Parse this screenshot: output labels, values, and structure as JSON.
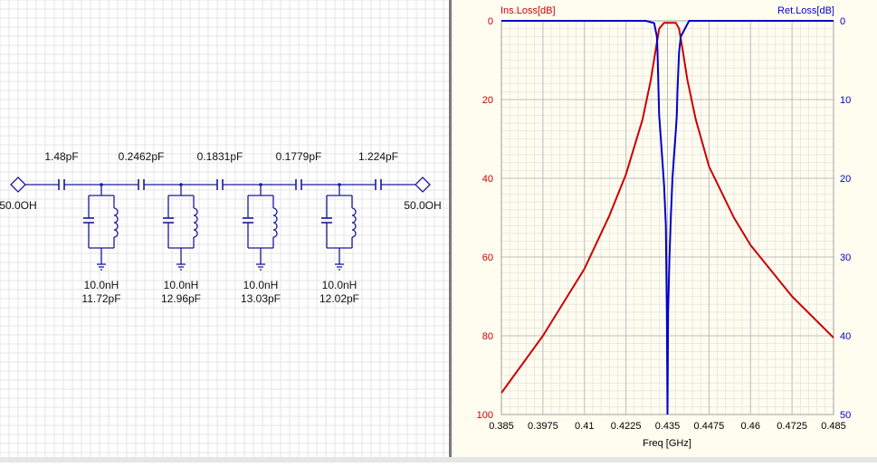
{
  "schematic": {
    "source_port": "50.0OH",
    "load_port": "50.0OH",
    "series_caps": [
      "1.48pF",
      "0.2462pF",
      "0.1831pF",
      "0.1779pF",
      "1.224pF"
    ],
    "resonators": [
      {
        "inductor": "10.0nH",
        "capacitor": "11.72pF"
      },
      {
        "inductor": "10.0nH",
        "capacitor": "12.96pF"
      },
      {
        "inductor": "10.0nH",
        "capacitor": "13.03pF"
      },
      {
        "inductor": "10.0nH",
        "capacitor": "12.02pF"
      }
    ],
    "wire_color": "#1a1a9a",
    "grid_color": "#e4e4e4"
  },
  "chart_data": {
    "type": "line",
    "xlabel": "Freq [GHz]",
    "ylabel_left": "Ins.Loss[dB]",
    "ylabel_right": "Ret.Loss[dB]",
    "xlim": [
      0.385,
      0.485
    ],
    "x_ticks": [
      "0.385",
      "0.3975",
      "0.41",
      "0.4225",
      "0.435",
      "0.4475",
      "0.46",
      "0.4725",
      "0.485"
    ],
    "ylim_left": [
      0,
      100
    ],
    "ylim_right": [
      0,
      50
    ],
    "y_ticks_left": [
      "0",
      "20",
      "40",
      "60",
      "80",
      "100"
    ],
    "y_ticks_right": [
      "0",
      "10",
      "20",
      "30",
      "40",
      "50"
    ],
    "y_inverted": true,
    "grid": true,
    "colors": {
      "ins_loss": "#cc0000",
      "ret_loss": "#0000cc",
      "background": "#fffdf0",
      "grid": "#dddddd"
    },
    "series": [
      {
        "axis": "left",
        "color": "#cc0000",
        "x": [
          0.385,
          0.3975,
          0.41,
          0.4175,
          0.4225,
          0.4275,
          0.43,
          0.4315,
          0.4325,
          0.434,
          0.435,
          0.436,
          0.4375,
          0.4385,
          0.4395,
          0.441,
          0.4435,
          0.4475,
          0.455,
          0.46,
          0.4725,
          0.485
        ],
        "y": [
          94.5,
          80,
          63,
          49.5,
          39,
          25,
          15,
          7,
          2,
          0.5,
          0.5,
          0.5,
          0.5,
          2,
          7,
          15,
          25,
          37,
          50,
          57,
          70,
          80.5
        ]
      },
      {
        "axis": "right",
        "color": "#0000cc",
        "x": [
          0.385,
          0.4285,
          0.431,
          0.4318,
          0.432,
          0.4325,
          0.433,
          0.434,
          0.4345,
          0.4348,
          0.435,
          0.4352,
          0.4356,
          0.436,
          0.4365,
          0.437,
          0.4375,
          0.4378,
          0.438,
          0.4385,
          0.439,
          0.4415,
          0.485
        ],
        "y": [
          0,
          0,
          0.3,
          2,
          4,
          12,
          15,
          21,
          26,
          37,
          50,
          37,
          30,
          25,
          20,
          17,
          14,
          12,
          9,
          4,
          2,
          0,
          0
        ]
      }
    ]
  }
}
